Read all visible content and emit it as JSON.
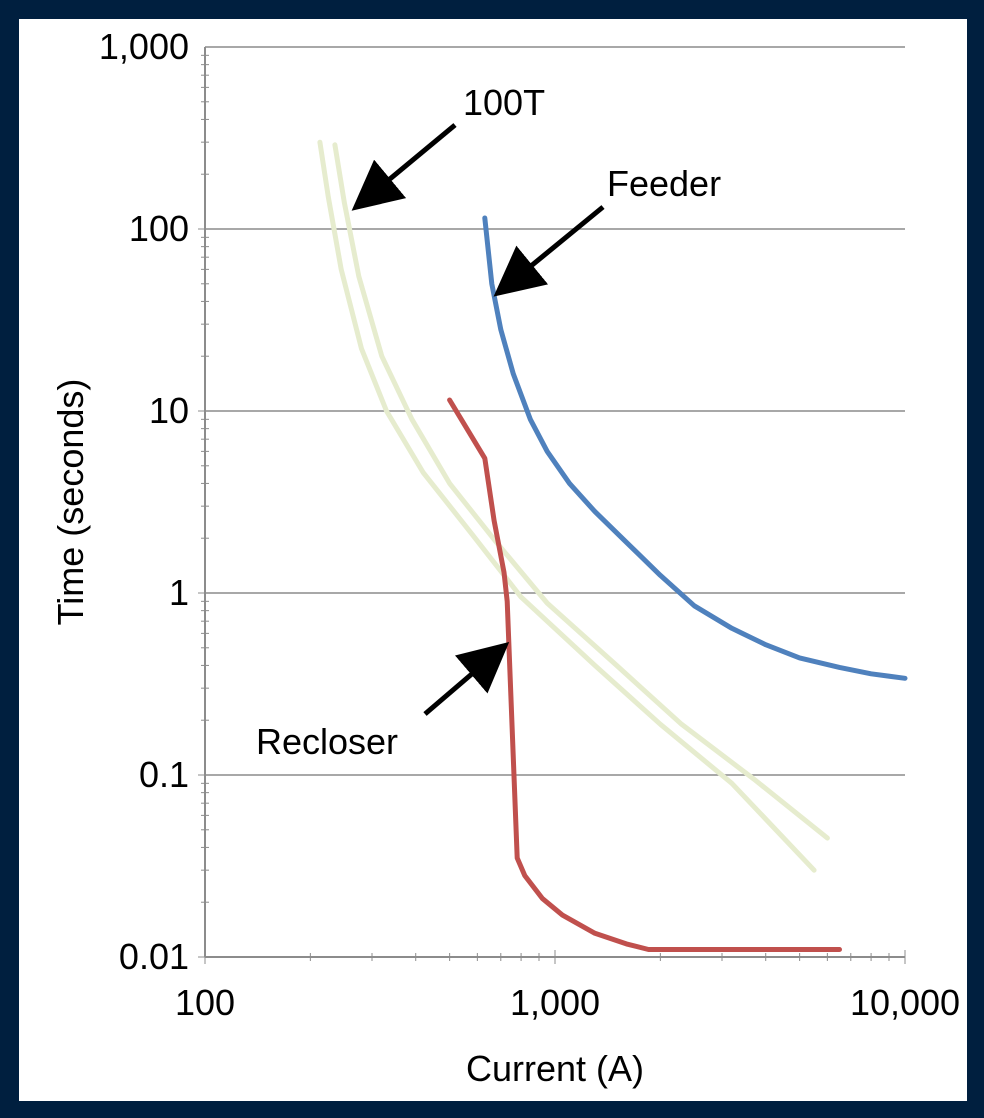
{
  "chart_data": {
    "type": "line",
    "title": "",
    "xlabel": "Current (A)",
    "ylabel": "Time (seconds)",
    "x_scale": "log",
    "y_scale": "log",
    "xlim": [
      100,
      10000
    ],
    "ylim": [
      0.01,
      1000
    ],
    "grid": {
      "major_y": true,
      "major_x": false
    },
    "x_ticks": [
      {
        "value": 100,
        "label": "100"
      },
      {
        "value": 1000,
        "label": "1,000"
      },
      {
        "value": 10000,
        "label": "10,000"
      }
    ],
    "y_ticks": [
      {
        "value": 0.01,
        "label": "0.01"
      },
      {
        "value": 0.1,
        "label": "0.1"
      },
      {
        "value": 1,
        "label": "1"
      },
      {
        "value": 10,
        "label": "10"
      },
      {
        "value": 100,
        "label": "100"
      },
      {
        "value": 1000,
        "label": "1,000"
      }
    ],
    "series": [
      {
        "name": "100T",
        "color": "#e6ecce",
        "points": [
          [
            213,
            300
          ],
          [
            225,
            150
          ],
          [
            245,
            60
          ],
          [
            280,
            22
          ],
          [
            330,
            10
          ],
          [
            420,
            4.6
          ],
          [
            580,
            2.1
          ],
          [
            800,
            0.95
          ],
          [
            1300,
            0.4
          ],
          [
            2000,
            0.19
          ],
          [
            3200,
            0.09
          ],
          [
            5500,
            0.03
          ]
        ]
      },
      {
        "name": "100T",
        "color": "#e6ecce",
        "points": [
          [
            235,
            290
          ],
          [
            250,
            140
          ],
          [
            275,
            55
          ],
          [
            320,
            20
          ],
          [
            390,
            9
          ],
          [
            500,
            4
          ],
          [
            680,
            1.9
          ],
          [
            950,
            0.88
          ],
          [
            1500,
            0.4
          ],
          [
            2300,
            0.19
          ],
          [
            3700,
            0.095
          ],
          [
            6000,
            0.045
          ]
        ]
      },
      {
        "name": "Feeder",
        "color": "#4f81bd",
        "points": [
          [
            630,
            115
          ],
          [
            660,
            50
          ],
          [
            700,
            28
          ],
          [
            760,
            16
          ],
          [
            850,
            9
          ],
          [
            950,
            6
          ],
          [
            1100,
            4
          ],
          [
            1300,
            2.8
          ],
          [
            1600,
            1.9
          ],
          [
            2000,
            1.25
          ],
          [
            2500,
            0.85
          ],
          [
            3200,
            0.64
          ],
          [
            4000,
            0.52
          ],
          [
            5000,
            0.44
          ],
          [
            6500,
            0.39
          ],
          [
            8000,
            0.36
          ],
          [
            10000,
            0.34
          ]
        ]
      },
      {
        "name": "Recloser",
        "color": "#c0504d",
        "points": [
          [
            500,
            11.5
          ],
          [
            630,
            5.5
          ],
          [
            670,
            2.5
          ],
          [
            715,
            1.3
          ],
          [
            730,
            0.9
          ],
          [
            780,
            0.035
          ],
          [
            820,
            0.028
          ],
          [
            920,
            0.021
          ],
          [
            1050,
            0.017
          ],
          [
            1300,
            0.0135
          ],
          [
            1600,
            0.0118
          ],
          [
            1850,
            0.011
          ],
          [
            2500,
            0.011
          ],
          [
            4000,
            0.011
          ],
          [
            6500,
            0.011
          ]
        ]
      }
    ],
    "annotations": [
      {
        "text": "100T"
      },
      {
        "text": "Feeder"
      },
      {
        "text": "Recloser"
      }
    ]
  }
}
